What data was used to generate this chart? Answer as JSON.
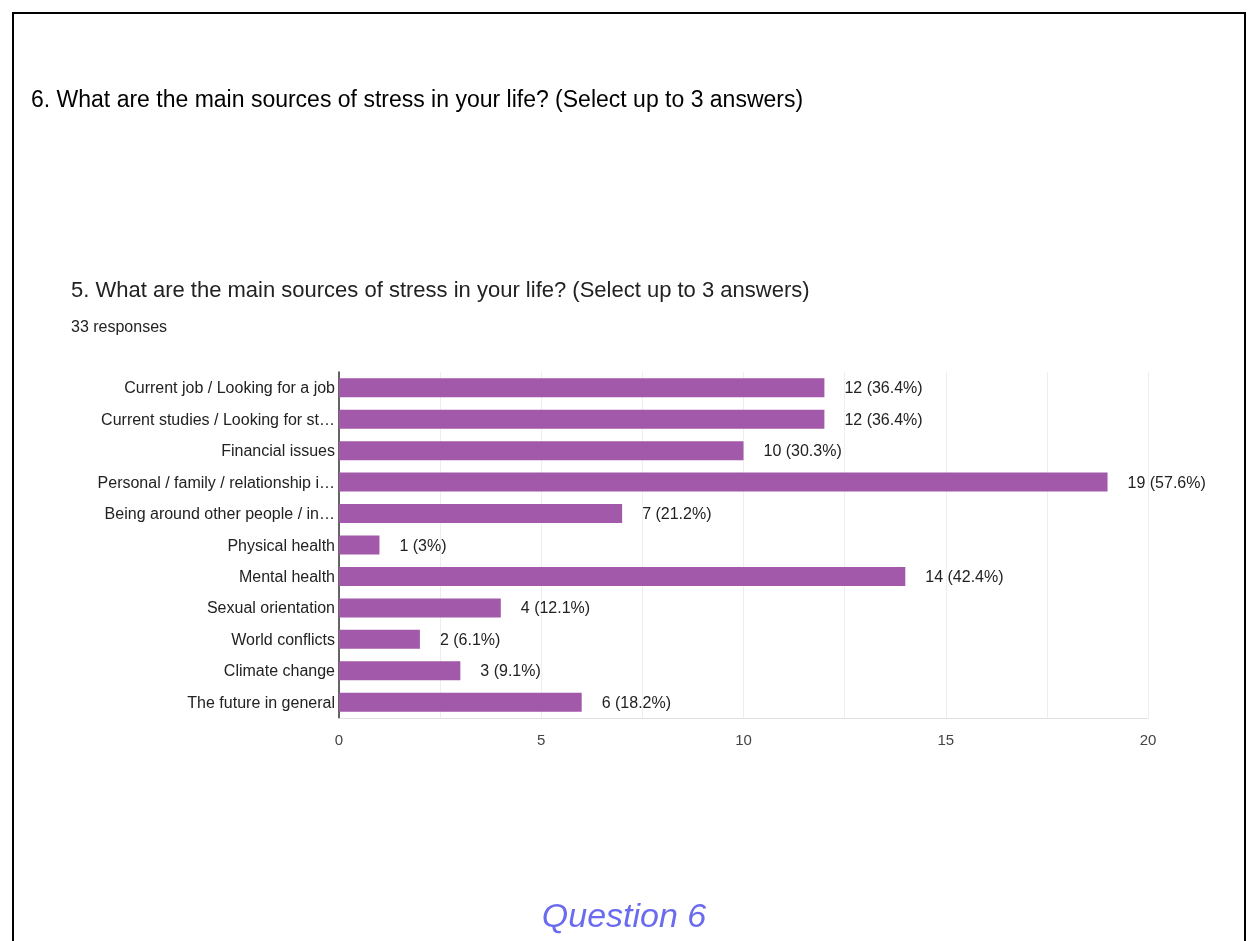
{
  "chart_data": {
    "type": "bar",
    "orientation": "horizontal",
    "title": "6. What are the main sources of stress in your life? (Select up to 3 answers)",
    "subtitle": "5. What are the main sources of stress in your life? (Select up to 3 answers)",
    "annotations": [
      "33 responses",
      "Question 6"
    ],
    "categories": [
      "Current job / Looking for a job",
      "Current studies / Looking for st…",
      "Financial issues",
      "Personal / family / relationship i…",
      "Being around other people / in…",
      "Physical health",
      "Mental health",
      "Sexual orientation",
      "World conflicts",
      "Climate change",
      "The future in general"
    ],
    "values": [
      12,
      12,
      10,
      19,
      7,
      1,
      14,
      4,
      2,
      3,
      6
    ],
    "value_labels": [
      "12 (36.4%)",
      "12 (36.4%)",
      "10 (30.3%)",
      "19 (57.6%)",
      "7 (21.2%)",
      "1 (3%)",
      "14 (42.4%)",
      "4 (12.1%)",
      "2 (6.1%)",
      "3 (9.1%)",
      "6 (18.2%)"
    ],
    "color": "#a259aa",
    "xlim": [
      0,
      20
    ],
    "xticks": [
      0,
      {
        "value": 2.5,
        "label": null
      },
      5,
      {
        "value": 7.5,
        "label": null
      },
      10,
      {
        "value": 12.5,
        "label": null
      },
      15,
      {
        "value": 17.5,
        "label": null
      },
      20
    ],
    "grid": "x"
  }
}
